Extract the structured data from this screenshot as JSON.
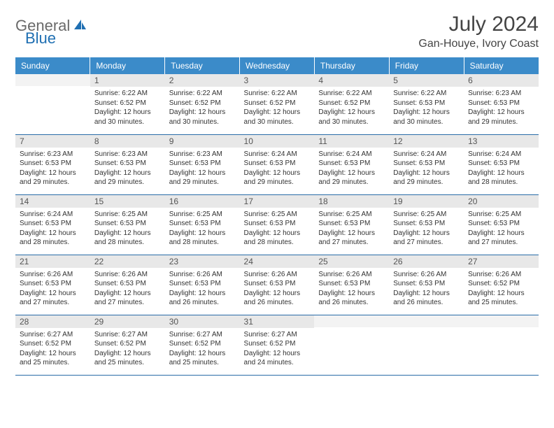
{
  "brand": {
    "part1": "General",
    "part2": "Blue"
  },
  "title": "July 2024",
  "location": "Gan-Houye, Ivory Coast",
  "colors": {
    "header_bg": "#3b8bc9",
    "header_text": "#ffffff",
    "daynum_bg": "#e8e8e8",
    "cell_border": "#2a6ca8",
    "brand_gray": "#6a6a6a",
    "brand_blue": "#1f6fb2"
  },
  "weekdays": [
    "Sunday",
    "Monday",
    "Tuesday",
    "Wednesday",
    "Thursday",
    "Friday",
    "Saturday"
  ],
  "weeks": [
    [
      {
        "n": "",
        "lines": []
      },
      {
        "n": "1",
        "lines": [
          "Sunrise: 6:22 AM",
          "Sunset: 6:52 PM",
          "Daylight: 12 hours",
          "and 30 minutes."
        ]
      },
      {
        "n": "2",
        "lines": [
          "Sunrise: 6:22 AM",
          "Sunset: 6:52 PM",
          "Daylight: 12 hours",
          "and 30 minutes."
        ]
      },
      {
        "n": "3",
        "lines": [
          "Sunrise: 6:22 AM",
          "Sunset: 6:52 PM",
          "Daylight: 12 hours",
          "and 30 minutes."
        ]
      },
      {
        "n": "4",
        "lines": [
          "Sunrise: 6:22 AM",
          "Sunset: 6:52 PM",
          "Daylight: 12 hours",
          "and 30 minutes."
        ]
      },
      {
        "n": "5",
        "lines": [
          "Sunrise: 6:22 AM",
          "Sunset: 6:53 PM",
          "Daylight: 12 hours",
          "and 30 minutes."
        ]
      },
      {
        "n": "6",
        "lines": [
          "Sunrise: 6:23 AM",
          "Sunset: 6:53 PM",
          "Daylight: 12 hours",
          "and 29 minutes."
        ]
      }
    ],
    [
      {
        "n": "7",
        "lines": [
          "Sunrise: 6:23 AM",
          "Sunset: 6:53 PM",
          "Daylight: 12 hours",
          "and 29 minutes."
        ]
      },
      {
        "n": "8",
        "lines": [
          "Sunrise: 6:23 AM",
          "Sunset: 6:53 PM",
          "Daylight: 12 hours",
          "and 29 minutes."
        ]
      },
      {
        "n": "9",
        "lines": [
          "Sunrise: 6:23 AM",
          "Sunset: 6:53 PM",
          "Daylight: 12 hours",
          "and 29 minutes."
        ]
      },
      {
        "n": "10",
        "lines": [
          "Sunrise: 6:24 AM",
          "Sunset: 6:53 PM",
          "Daylight: 12 hours",
          "and 29 minutes."
        ]
      },
      {
        "n": "11",
        "lines": [
          "Sunrise: 6:24 AM",
          "Sunset: 6:53 PM",
          "Daylight: 12 hours",
          "and 29 minutes."
        ]
      },
      {
        "n": "12",
        "lines": [
          "Sunrise: 6:24 AM",
          "Sunset: 6:53 PM",
          "Daylight: 12 hours",
          "and 29 minutes."
        ]
      },
      {
        "n": "13",
        "lines": [
          "Sunrise: 6:24 AM",
          "Sunset: 6:53 PM",
          "Daylight: 12 hours",
          "and 28 minutes."
        ]
      }
    ],
    [
      {
        "n": "14",
        "lines": [
          "Sunrise: 6:24 AM",
          "Sunset: 6:53 PM",
          "Daylight: 12 hours",
          "and 28 minutes."
        ]
      },
      {
        "n": "15",
        "lines": [
          "Sunrise: 6:25 AM",
          "Sunset: 6:53 PM",
          "Daylight: 12 hours",
          "and 28 minutes."
        ]
      },
      {
        "n": "16",
        "lines": [
          "Sunrise: 6:25 AM",
          "Sunset: 6:53 PM",
          "Daylight: 12 hours",
          "and 28 minutes."
        ]
      },
      {
        "n": "17",
        "lines": [
          "Sunrise: 6:25 AM",
          "Sunset: 6:53 PM",
          "Daylight: 12 hours",
          "and 28 minutes."
        ]
      },
      {
        "n": "18",
        "lines": [
          "Sunrise: 6:25 AM",
          "Sunset: 6:53 PM",
          "Daylight: 12 hours",
          "and 27 minutes."
        ]
      },
      {
        "n": "19",
        "lines": [
          "Sunrise: 6:25 AM",
          "Sunset: 6:53 PM",
          "Daylight: 12 hours",
          "and 27 minutes."
        ]
      },
      {
        "n": "20",
        "lines": [
          "Sunrise: 6:25 AM",
          "Sunset: 6:53 PM",
          "Daylight: 12 hours",
          "and 27 minutes."
        ]
      }
    ],
    [
      {
        "n": "21",
        "lines": [
          "Sunrise: 6:26 AM",
          "Sunset: 6:53 PM",
          "Daylight: 12 hours",
          "and 27 minutes."
        ]
      },
      {
        "n": "22",
        "lines": [
          "Sunrise: 6:26 AM",
          "Sunset: 6:53 PM",
          "Daylight: 12 hours",
          "and 27 minutes."
        ]
      },
      {
        "n": "23",
        "lines": [
          "Sunrise: 6:26 AM",
          "Sunset: 6:53 PM",
          "Daylight: 12 hours",
          "and 26 minutes."
        ]
      },
      {
        "n": "24",
        "lines": [
          "Sunrise: 6:26 AM",
          "Sunset: 6:53 PM",
          "Daylight: 12 hours",
          "and 26 minutes."
        ]
      },
      {
        "n": "25",
        "lines": [
          "Sunrise: 6:26 AM",
          "Sunset: 6:53 PM",
          "Daylight: 12 hours",
          "and 26 minutes."
        ]
      },
      {
        "n": "26",
        "lines": [
          "Sunrise: 6:26 AM",
          "Sunset: 6:53 PM",
          "Daylight: 12 hours",
          "and 26 minutes."
        ]
      },
      {
        "n": "27",
        "lines": [
          "Sunrise: 6:26 AM",
          "Sunset: 6:52 PM",
          "Daylight: 12 hours",
          "and 25 minutes."
        ]
      }
    ],
    [
      {
        "n": "28",
        "lines": [
          "Sunrise: 6:27 AM",
          "Sunset: 6:52 PM",
          "Daylight: 12 hours",
          "and 25 minutes."
        ]
      },
      {
        "n": "29",
        "lines": [
          "Sunrise: 6:27 AM",
          "Sunset: 6:52 PM",
          "Daylight: 12 hours",
          "and 25 minutes."
        ]
      },
      {
        "n": "30",
        "lines": [
          "Sunrise: 6:27 AM",
          "Sunset: 6:52 PM",
          "Daylight: 12 hours",
          "and 25 minutes."
        ]
      },
      {
        "n": "31",
        "lines": [
          "Sunrise: 6:27 AM",
          "Sunset: 6:52 PM",
          "Daylight: 12 hours",
          "and 24 minutes."
        ]
      },
      {
        "n": "",
        "lines": []
      },
      {
        "n": "",
        "lines": []
      },
      {
        "n": "",
        "lines": []
      }
    ]
  ]
}
